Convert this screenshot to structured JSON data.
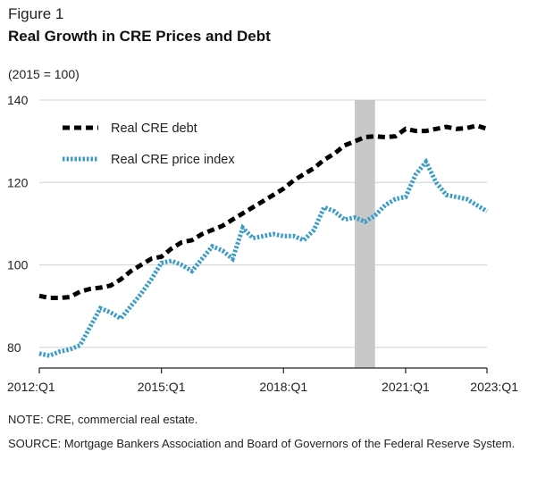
{
  "figure": {
    "label": "Figure 1",
    "title": "Real Growth in CRE Prices and Debt",
    "unit_note": "(2015 = 100)",
    "note": "NOTE: CRE, commercial real estate.",
    "source": "SOURCE:  Mortgage Bankers Association and Board of Governors of the Federal Reserve System."
  },
  "chart_data": {
    "type": "line",
    "ylim": [
      75,
      140
    ],
    "yticks": [
      80,
      100,
      120,
      140
    ],
    "xlim": [
      "2012:Q1",
      "2023:Q1"
    ],
    "xticks": [
      "2012:Q1",
      "2015:Q1",
      "2018:Q1",
      "2021:Q1",
      "2023:Q1"
    ],
    "grid": "horizontal",
    "legend_position": "top-left",
    "shaded_period": {
      "start": "2019:Q4",
      "end": "2020:Q2",
      "color": "#c8c8c8"
    },
    "x": [
      "2012:Q1",
      "2012:Q2",
      "2012:Q3",
      "2012:Q4",
      "2013:Q1",
      "2013:Q2",
      "2013:Q3",
      "2013:Q4",
      "2014:Q1",
      "2014:Q2",
      "2014:Q3",
      "2014:Q4",
      "2015:Q1",
      "2015:Q2",
      "2015:Q3",
      "2015:Q4",
      "2016:Q1",
      "2016:Q2",
      "2016:Q3",
      "2016:Q4",
      "2017:Q1",
      "2017:Q2",
      "2017:Q3",
      "2017:Q4",
      "2018:Q1",
      "2018:Q2",
      "2018:Q3",
      "2018:Q4",
      "2019:Q1",
      "2019:Q2",
      "2019:Q3",
      "2019:Q4",
      "2020:Q1",
      "2020:Q2",
      "2020:Q3",
      "2020:Q4",
      "2021:Q1",
      "2021:Q2",
      "2021:Q3",
      "2021:Q4",
      "2022:Q1",
      "2022:Q2",
      "2022:Q3",
      "2022:Q4",
      "2023:Q1"
    ],
    "series": [
      {
        "name": "Real CRE debt",
        "color": "#000000",
        "style": "dashed",
        "values": [
          92.5,
          92.0,
          92.0,
          92.2,
          93.5,
          94.2,
          94.5,
          95.0,
          96.5,
          98.5,
          100.0,
          101.5,
          102.0,
          104.0,
          105.5,
          106.0,
          107.5,
          108.5,
          109.5,
          111.0,
          112.5,
          114.0,
          115.5,
          117.0,
          118.5,
          120.5,
          122.0,
          123.5,
          125.5,
          127.0,
          129.0,
          130.0,
          131.0,
          131.2,
          131.0,
          131.2,
          133.0,
          132.5,
          132.5,
          133.0,
          133.5,
          133.0,
          133.2,
          133.8,
          133.0
        ]
      },
      {
        "name": "Real CRE price index",
        "color": "#3a9cc7",
        "style": "dotted",
        "values": [
          78.5,
          78.0,
          79.0,
          79.5,
          80.5,
          85.0,
          89.5,
          88.5,
          87.0,
          90.0,
          93.0,
          96.5,
          100.5,
          101.0,
          100.0,
          98.5,
          101.5,
          104.5,
          103.5,
          101.5,
          109.0,
          106.5,
          107.0,
          107.5,
          107.0,
          107.0,
          106.0,
          108.5,
          114.0,
          113.0,
          111.0,
          111.5,
          110.5,
          112.0,
          114.5,
          116.0,
          116.5,
          122.0,
          125.0,
          120.0,
          117.0,
          116.5,
          116.0,
          114.5,
          113.0
        ]
      }
    ]
  }
}
